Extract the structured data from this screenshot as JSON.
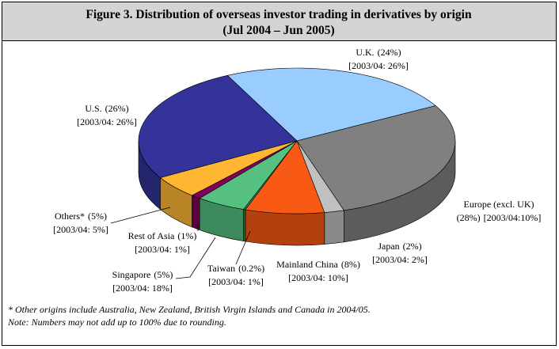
{
  "chart_data": {
    "type": "pie3d",
    "title": "Figure 3.  Distribution of overseas investor trading in derivatives by origin",
    "subtitle": "(Jul 2004 – Jun 2005)",
    "categories": [
      "U.K.",
      "Europe (excl. UK)",
      "Japan",
      "Mainland China",
      "Taiwan",
      "Singapore",
      "Rest of Asia",
      "Others*",
      "U.S."
    ],
    "values": [
      24,
      28,
      2,
      8,
      0.2,
      5,
      1,
      5,
      26
    ],
    "value_labels": [
      "(24%)",
      "(28%)",
      "(2%)",
      "(8%)",
      "(0.2%)",
      "(5%)",
      "(1%)",
      "(5%)",
      "(26%)"
    ],
    "prior_labels": [
      "[2003/04: 26%]",
      "[2003/04:10%]",
      "[2003/04: 2%]",
      "[2003/04: 10%]",
      "[2003/04: 1%]",
      "[2003/04: 18%]",
      "[2003/04: 1%]",
      "[2003/04: 5%]",
      "[2003/04: 26%]"
    ],
    "colors": [
      "#99ccff",
      "#808080",
      "#c0c0c0",
      "#f85a16",
      "#2f8f5a",
      "#55c080",
      "#80005a",
      "#ffb733",
      "#333399"
    ],
    "notes": [
      "* Other origins include Australia, New Zealand, British Virgin Islands and Canada in 2004/05.",
      "Note:  Numbers may not add up to 100% due to rounding."
    ]
  }
}
